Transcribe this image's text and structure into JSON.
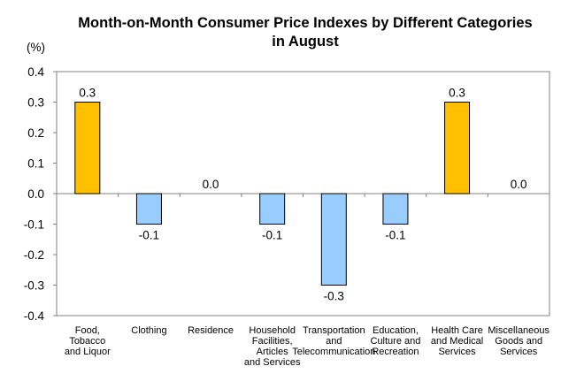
{
  "chart_data": {
    "type": "bar",
    "title_lines": [
      "Month-on-Month Consumer Price Indexes by Different Categories",
      "in August"
    ],
    "ylabel": "(%)",
    "ylim": [
      -0.4,
      0.4
    ],
    "yticks": [
      "0.4",
      "0.3",
      "0.2",
      "0.1",
      "0.0",
      "-0.1",
      "-0.2",
      "-0.3",
      "-0.4"
    ],
    "categories": [
      [
        "Food,",
        "Tobacco",
        "and Liquor"
      ],
      [
        "Clothing"
      ],
      [
        "Residence"
      ],
      [
        "Household",
        "Facilities,",
        "Articles",
        "and Services"
      ],
      [
        "Transportation",
        "and",
        "Telecommunication"
      ],
      [
        "Education,",
        "Culture and",
        "Recreation"
      ],
      [
        "Health Care",
        "and Medical",
        "Services"
      ],
      [
        "Miscellaneous",
        "Goods and",
        "Services"
      ]
    ],
    "values": [
      0.3,
      -0.1,
      0.0,
      -0.1,
      -0.3,
      -0.1,
      0.3,
      0.0
    ],
    "data_labels": [
      "0.3",
      "-0.1",
      "0.0",
      "-0.1",
      "-0.3",
      "-0.1",
      "0.3",
      "0.0"
    ],
    "colors": {
      "positive": "#FFC000",
      "negative": "#99CCFF"
    },
    "grid": false,
    "legend": "none"
  }
}
